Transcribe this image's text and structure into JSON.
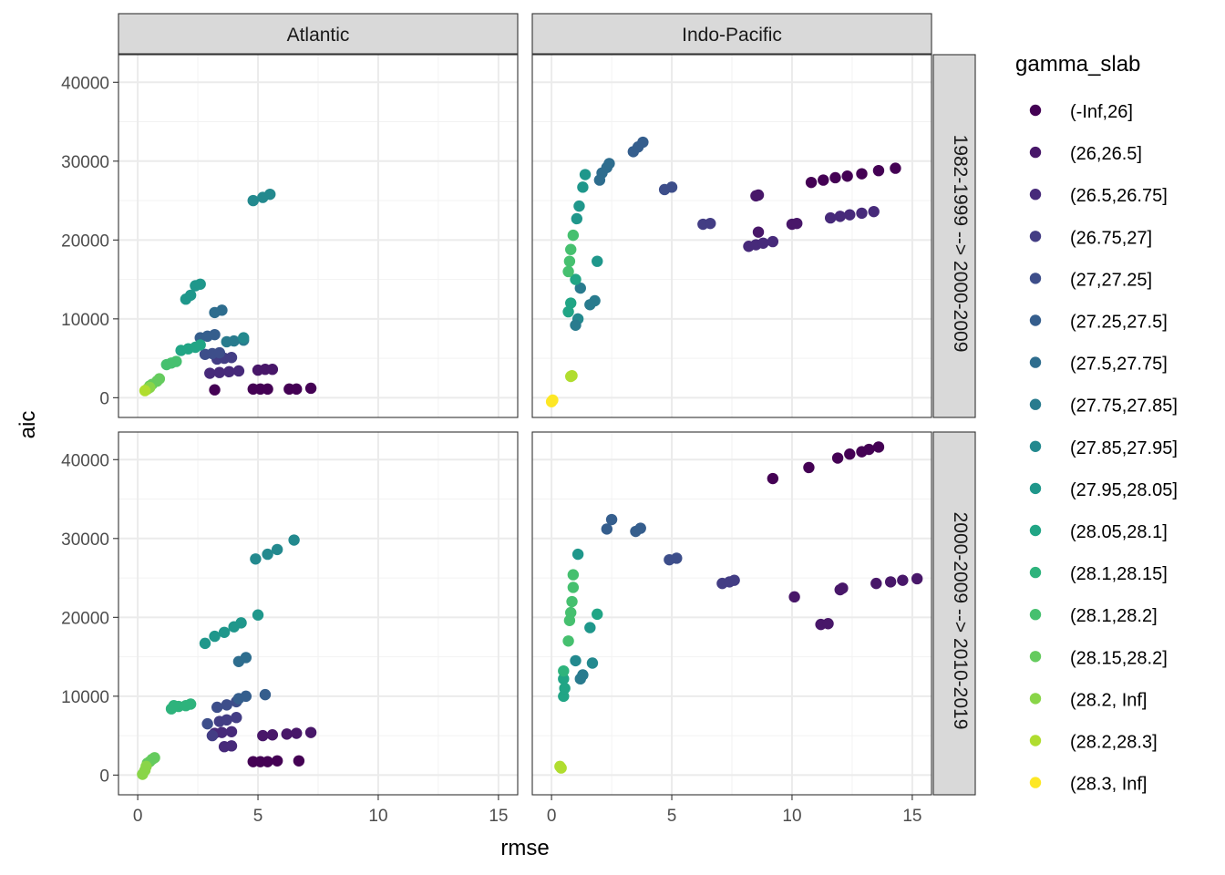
{
  "chart_data": {
    "type": "scatter",
    "xlabel": "rmse",
    "ylabel": "aic",
    "xlim": [
      -0.8,
      15.8
    ],
    "ylim": [
      -2500,
      43500
    ],
    "x_ticks": [
      0,
      5,
      10,
      15
    ],
    "y_ticks": [
      0,
      10000,
      20000,
      30000,
      40000
    ],
    "x_tick_labels": [
      "0",
      "5",
      "10",
      "15"
    ],
    "y_tick_labels": [
      "0",
      "10000",
      "20000",
      "30000",
      "40000"
    ],
    "grid": true,
    "legend_position": "right",
    "facet_columns": [
      "Atlantic",
      "Indo-Pacific"
    ],
    "facet_rows": [
      "1982-1999 --> 2000-2009",
      "2000-2009 --> 2010-2019"
    ],
    "legend": {
      "title": "gamma_slab",
      "entries": [
        "(-Inf,26]",
        "(26,26.5]",
        "(26.5,26.75]",
        "(26.75,27]",
        "(27,27.25]",
        "(27.25,27.5]",
        "(27.5,27.75]",
        "(27.75,27.85]",
        "(27.85,27.95]",
        "(27.95,28.05]",
        "(28.05,28.1]",
        "(28.1,28.15]",
        "(28.1,28.2]",
        "(28.15,28.2]",
        "(28.2, Inf]",
        "(28.2,28.3]",
        "(28.3, Inf]"
      ],
      "colors": [
        "#440154",
        "#481769",
        "#472A7A",
        "#433D84",
        "#3D4E8A",
        "#355E8D",
        "#2E6D8E",
        "#297B8E",
        "#23898E",
        "#1F978B",
        "#21A585",
        "#2EB37C",
        "#46C06F",
        "#65CB5E",
        "#89D548",
        "#B0DD2F",
        "#FDE725"
      ]
    },
    "panels": [
      {
        "column": "Atlantic",
        "row": "1982-1999 --> 2000-2009",
        "points": [
          [
            3.2,
            1000,
            0
          ],
          [
            4.8,
            1100,
            0
          ],
          [
            5.1,
            1100,
            0
          ],
          [
            5.4,
            1100,
            0
          ],
          [
            6.3,
            1100,
            0
          ],
          [
            6.6,
            1100,
            0
          ],
          [
            7.2,
            1200,
            0
          ],
          [
            5.0,
            3500,
            1
          ],
          [
            5.3,
            3600,
            1
          ],
          [
            5.6,
            3600,
            1
          ],
          [
            3.0,
            3100,
            2
          ],
          [
            3.4,
            3200,
            2
          ],
          [
            3.8,
            3300,
            2
          ],
          [
            4.2,
            3400,
            2
          ],
          [
            3.3,
            4900,
            3
          ],
          [
            3.6,
            5000,
            3
          ],
          [
            3.9,
            5100,
            3
          ],
          [
            2.8,
            5500,
            4
          ],
          [
            3.1,
            5600,
            4
          ],
          [
            3.4,
            5700,
            4
          ],
          [
            2.6,
            7600,
            5
          ],
          [
            2.9,
            7800,
            5
          ],
          [
            3.2,
            8000,
            5
          ],
          [
            3.2,
            10800,
            6
          ],
          [
            3.5,
            11100,
            6
          ],
          [
            3.7,
            7100,
            7
          ],
          [
            4.0,
            7200,
            7
          ],
          [
            4.4,
            7300,
            7
          ],
          [
            4.4,
            7600,
            8
          ],
          [
            2.4,
            14200,
            9
          ],
          [
            2.6,
            14400,
            9
          ],
          [
            2.0,
            12500,
            9
          ],
          [
            2.2,
            13000,
            9
          ],
          [
            4.8,
            25000,
            8
          ],
          [
            5.2,
            25400,
            8
          ],
          [
            5.5,
            25800,
            8
          ],
          [
            1.8,
            6000,
            10
          ],
          [
            2.1,
            6200,
            10
          ],
          [
            2.4,
            6400,
            10
          ],
          [
            2.6,
            6700,
            10
          ],
          [
            1.2,
            4200,
            12
          ],
          [
            1.4,
            4400,
            12
          ],
          [
            1.6,
            4600,
            12
          ],
          [
            0.5,
            1500,
            13
          ],
          [
            0.6,
            1700,
            13
          ],
          [
            0.8,
            2100,
            13
          ],
          [
            0.9,
            2400,
            13
          ],
          [
            0.4,
            1100,
            14
          ],
          [
            0.5,
            1300,
            14
          ],
          [
            0.3,
            900,
            15
          ]
        ]
      },
      {
        "column": "Indo-Pacific",
        "row": "1982-1999 --> 2000-2009",
        "points": [
          [
            10.8,
            27300,
            0
          ],
          [
            11.3,
            27600,
            0
          ],
          [
            11.8,
            27900,
            0
          ],
          [
            12.3,
            28100,
            0
          ],
          [
            12.9,
            28400,
            0
          ],
          [
            13.6,
            28800,
            0
          ],
          [
            14.3,
            29100,
            0
          ],
          [
            8.5,
            25600,
            1
          ],
          [
            8.6,
            25700,
            1
          ],
          [
            8.6,
            21000,
            1
          ],
          [
            10.0,
            22000,
            1
          ],
          [
            10.2,
            22100,
            1
          ],
          [
            11.6,
            22800,
            2
          ],
          [
            12.0,
            23000,
            2
          ],
          [
            12.4,
            23200,
            2
          ],
          [
            12.9,
            23400,
            2
          ],
          [
            13.4,
            23600,
            2
          ],
          [
            8.2,
            19200,
            2
          ],
          [
            8.5,
            19400,
            2
          ],
          [
            8.8,
            19600,
            2
          ],
          [
            9.2,
            19800,
            2
          ],
          [
            6.3,
            22000,
            3
          ],
          [
            6.6,
            22100,
            3
          ],
          [
            4.7,
            26400,
            4
          ],
          [
            5.0,
            26700,
            4
          ],
          [
            3.4,
            31200,
            5
          ],
          [
            3.6,
            31800,
            5
          ],
          [
            3.8,
            32400,
            5
          ],
          [
            2.1,
            28500,
            6
          ],
          [
            2.3,
            29200,
            6
          ],
          [
            2.4,
            29700,
            6
          ],
          [
            2.0,
            27600,
            6
          ],
          [
            1.8,
            12300,
            7
          ],
          [
            1.6,
            11800,
            7
          ],
          [
            1.2,
            13900,
            7
          ],
          [
            1.1,
            10000,
            8
          ],
          [
            1.0,
            9200,
            7
          ],
          [
            1.4,
            28300,
            9
          ],
          [
            1.3,
            26700,
            9
          ],
          [
            1.15,
            24300,
            9
          ],
          [
            1.05,
            22700,
            9
          ],
          [
            1.9,
            17300,
            9
          ],
          [
            1.0,
            15000,
            10
          ],
          [
            0.8,
            12000,
            10
          ],
          [
            0.7,
            10900,
            10
          ],
          [
            0.9,
            20600,
            12
          ],
          [
            0.8,
            18800,
            12
          ],
          [
            0.75,
            17300,
            12
          ],
          [
            0.7,
            16000,
            12
          ],
          [
            0.85,
            2800,
            15
          ],
          [
            0.8,
            2700,
            15
          ],
          [
            0.0,
            -500,
            16
          ],
          [
            0.05,
            -300,
            16
          ]
        ]
      },
      {
        "column": "Atlantic",
        "row": "2000-2009 --> 2010-2019",
        "points": [
          [
            4.8,
            1700,
            0
          ],
          [
            5.1,
            1700,
            0
          ],
          [
            5.4,
            1700,
            0
          ],
          [
            5.8,
            1800,
            0
          ],
          [
            6.7,
            1800,
            0
          ],
          [
            5.2,
            5000,
            1
          ],
          [
            5.6,
            5100,
            1
          ],
          [
            6.2,
            5200,
            1
          ],
          [
            6.6,
            5300,
            1
          ],
          [
            7.2,
            5400,
            1
          ],
          [
            3.6,
            3600,
            2
          ],
          [
            3.9,
            3700,
            2
          ],
          [
            3.2,
            5300,
            2
          ],
          [
            3.5,
            5400,
            2
          ],
          [
            3.9,
            5500,
            2
          ],
          [
            3.1,
            5000,
            3
          ],
          [
            3.4,
            6800,
            3
          ],
          [
            3.7,
            7000,
            3
          ],
          [
            4.1,
            7300,
            3
          ],
          [
            2.9,
            6500,
            4
          ],
          [
            3.3,
            8600,
            4
          ],
          [
            3.7,
            8900,
            4
          ],
          [
            4.1,
            9300,
            4
          ],
          [
            4.2,
            9700,
            5
          ],
          [
            4.5,
            10000,
            5
          ],
          [
            5.3,
            10200,
            5
          ],
          [
            4.2,
            14400,
            6
          ],
          [
            4.5,
            14900,
            6
          ],
          [
            3.2,
            17600,
            9
          ],
          [
            3.6,
            18100,
            9
          ],
          [
            4.0,
            18800,
            9
          ],
          [
            4.3,
            19300,
            9
          ],
          [
            5.0,
            20300,
            9
          ],
          [
            2.8,
            16700,
            9
          ],
          [
            4.9,
            27400,
            8
          ],
          [
            5.4,
            28000,
            8
          ],
          [
            5.8,
            28600,
            8
          ],
          [
            6.5,
            29800,
            8
          ],
          [
            1.4,
            8400,
            11
          ],
          [
            1.7,
            8700,
            11
          ],
          [
            2.0,
            8800,
            11
          ],
          [
            2.2,
            9000,
            11
          ],
          [
            1.5,
            8800,
            11
          ],
          [
            0.4,
            1500,
            13
          ],
          [
            0.5,
            1700,
            13
          ],
          [
            0.6,
            2000,
            13
          ],
          [
            0.7,
            2200,
            13
          ],
          [
            0.2,
            100,
            14
          ],
          [
            0.3,
            600,
            14
          ],
          [
            0.35,
            1100,
            14
          ]
        ]
      },
      {
        "column": "Indo-Pacific",
        "row": "2000-2009 --> 2010-2019",
        "points": [
          [
            9.2,
            37600,
            0
          ],
          [
            10.7,
            39000,
            0
          ],
          [
            11.9,
            40200,
            0
          ],
          [
            12.4,
            40700,
            0
          ],
          [
            12.9,
            41000,
            0
          ],
          [
            13.2,
            41300,
            0
          ],
          [
            13.6,
            41600,
            0
          ],
          [
            10.1,
            22600,
            1
          ],
          [
            11.2,
            19100,
            1
          ],
          [
            11.5,
            19200,
            1
          ],
          [
            12.0,
            23500,
            1
          ],
          [
            12.1,
            23700,
            1
          ],
          [
            13.5,
            24300,
            1
          ],
          [
            14.1,
            24500,
            1
          ],
          [
            14.6,
            24700,
            1
          ],
          [
            15.2,
            24900,
            1
          ],
          [
            7.1,
            24300,
            3
          ],
          [
            7.4,
            24500,
            3
          ],
          [
            7.6,
            24700,
            3
          ],
          [
            4.9,
            27300,
            4
          ],
          [
            5.2,
            27500,
            4
          ],
          [
            3.5,
            30900,
            5
          ],
          [
            3.7,
            31300,
            5
          ],
          [
            2.3,
            31200,
            5
          ],
          [
            2.5,
            32400,
            5
          ],
          [
            1.2,
            12200,
            7
          ],
          [
            1.3,
            12700,
            7
          ],
          [
            1.0,
            14500,
            8
          ],
          [
            1.7,
            14200,
            8
          ],
          [
            1.1,
            28000,
            9
          ],
          [
            1.6,
            18700,
            9
          ],
          [
            1.9,
            20400,
            10
          ],
          [
            0.9,
            25400,
            12
          ],
          [
            0.9,
            23800,
            12
          ],
          [
            0.85,
            22000,
            12
          ],
          [
            0.8,
            20600,
            12
          ],
          [
            0.75,
            19600,
            12
          ],
          [
            0.7,
            17000,
            12
          ],
          [
            0.5,
            12200,
            10
          ],
          [
            0.5,
            13200,
            11
          ],
          [
            0.5,
            10000,
            10
          ],
          [
            0.55,
            11000,
            10
          ],
          [
            0.4,
            900,
            15
          ],
          [
            0.35,
            1100,
            15
          ]
        ]
      }
    ]
  }
}
